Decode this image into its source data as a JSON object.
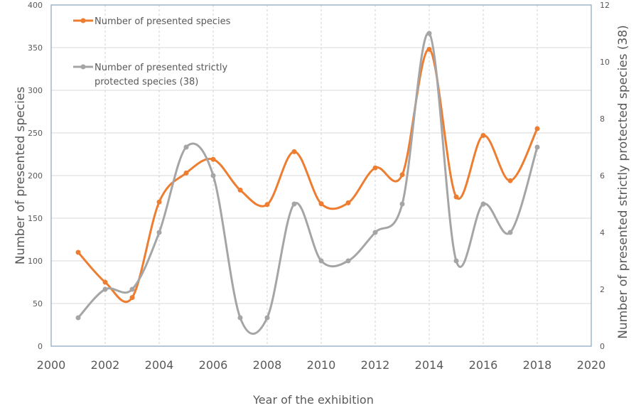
{
  "chart_data": {
    "type": "line",
    "title": "",
    "xlabel": "Year of the exhibition",
    "ylabel": "Number of presented species",
    "y2label": "Number of presented strictly protected species (38)",
    "xlim": [
      2000,
      2020
    ],
    "ylim": [
      0,
      400
    ],
    "y2lim": [
      0,
      12
    ],
    "x_ticks": [
      "2000",
      "2002",
      "2004",
      "2006",
      "2008",
      "2010",
      "2012",
      "2014",
      "2016",
      "2018",
      "2020"
    ],
    "y_ticks": [
      "0",
      "50",
      "100",
      "150",
      "200",
      "250",
      "300",
      "350",
      "400"
    ],
    "y2_ticks": [
      "0",
      "2",
      "4",
      "6",
      "8",
      "10",
      "12"
    ],
    "grid": true,
    "smooth": true,
    "legend": {
      "position": "top-left",
      "entries": [
        {
          "label_lines": [
            "Number of presented species"
          ]
        },
        {
          "label_lines": [
            "Number of presented strictly",
            "protected species (38)"
          ]
        }
      ]
    },
    "x": [
      2001,
      2002,
      2003,
      2004,
      2005,
      2006,
      2007,
      2008,
      2009,
      2010,
      2011,
      2012,
      2013,
      2014,
      2015,
      2016,
      2017,
      2018
    ],
    "series": [
      {
        "name": "Number of presented species",
        "axis": "left",
        "color": "#ED7D31",
        "values": [
          110,
          75,
          57,
          169,
          203,
          219,
          183,
          166,
          228,
          167,
          168,
          209,
          201,
          348,
          175,
          247,
          194,
          255
        ]
      },
      {
        "name": "Number of presented strictly protected species (38)",
        "axis": "right",
        "color": "#A5A5A5",
        "values": [
          1,
          2,
          2,
          4,
          7,
          6,
          1,
          1,
          5,
          3,
          3,
          4,
          5,
          11,
          3,
          5,
          4,
          7
        ]
      }
    ]
  }
}
